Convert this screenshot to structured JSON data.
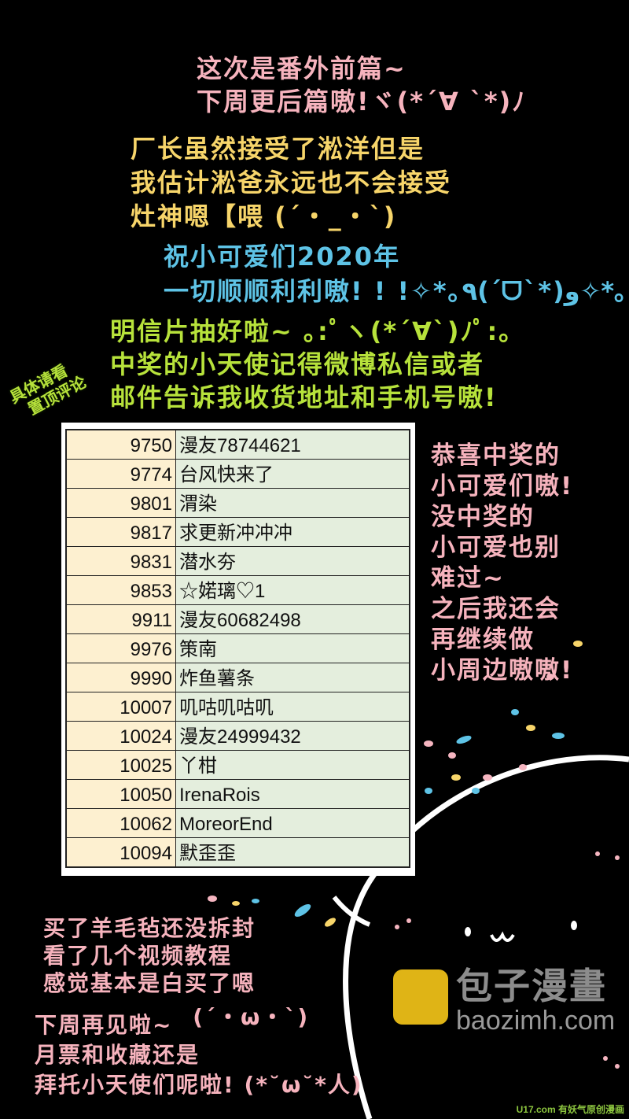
{
  "intro": {
    "lines": [
      "这次是番外前篇~",
      "下周更后篇嗷!ヾ(*´∀ `*)ﾉ"
    ]
  },
  "note": {
    "lines": [
      "厂长虽然接受了淞洋但是",
      "我估计淞爸永远也不会接受",
      "灶神嗯【喂 (´・_・`)"
    ]
  },
  "wishes": {
    "lines": [
      "祝小可爱们2020年",
      "一切顺顺利利嗷! ! !✧*｡٩(ˊᗜˋ*)و✧*｡"
    ]
  },
  "postcard": {
    "lines": [
      "明信片抽好啦~ ｡:ﾟヽ(*´∀`)ﾉﾟ:｡",
      "中奖的小天使记得微博私信或者",
      "邮件告诉我收货地址和手机号嗷!"
    ]
  },
  "tag": {
    "lines": [
      "具体请看",
      "置顶评论"
    ]
  },
  "winners": [
    {
      "id": "9750",
      "name": "漫友78744621"
    },
    {
      "id": "9774",
      "name": "台风快来了"
    },
    {
      "id": "9801",
      "name": "渭染"
    },
    {
      "id": "9817",
      "name": "求更新冲冲冲"
    },
    {
      "id": "9831",
      "name": "潜水夯"
    },
    {
      "id": "9853",
      "name": "☆婼璃♡1"
    },
    {
      "id": "9911",
      "name": "漫友60682498"
    },
    {
      "id": "9976",
      "name": "策南"
    },
    {
      "id": "9990",
      "name": "炸鱼薯条"
    },
    {
      "id": "10007",
      "name": "叽咕叽咕叽"
    },
    {
      "id": "10024",
      "name": "漫友24999432"
    },
    {
      "id": "10025",
      "name": "丫柑"
    },
    {
      "id": "10050",
      "name": "IrenaRois"
    },
    {
      "id": "10062",
      "name": "MoreorEnd"
    },
    {
      "id": "10094",
      "name": "默歪歪"
    }
  ],
  "congrats": {
    "lines": [
      "恭喜中奖的",
      "小可爱们嗷!",
      "没中奖的",
      "小可爱也别",
      "难过~",
      "之后我还会",
      "再继续做",
      "小周边嗷嗷!"
    ]
  },
  "felt": {
    "lines": [
      "买了羊毛毡还没拆封",
      "看了几个视频教程",
      "感觉基本是白买了嗯"
    ]
  },
  "outro": {
    "line1": "下周再见啦~",
    "face1": "(´・ω・`)",
    "line2": "月票和收藏还是",
    "line3": "拜托小天使们呢啦! (*˘ω˘*人)"
  },
  "watermark": {
    "text": "包子漫畫",
    "url": "baozimh.com"
  },
  "u17_logo": "U17.com 有妖气原创漫画",
  "colors": {
    "pink": "#f6b3bd",
    "yellow": "#f7d56a",
    "blue": "#5ec3e6",
    "green": "#b7e23b",
    "number_cell": "#fdf0d0",
    "name_cell": "#e4eedd"
  }
}
